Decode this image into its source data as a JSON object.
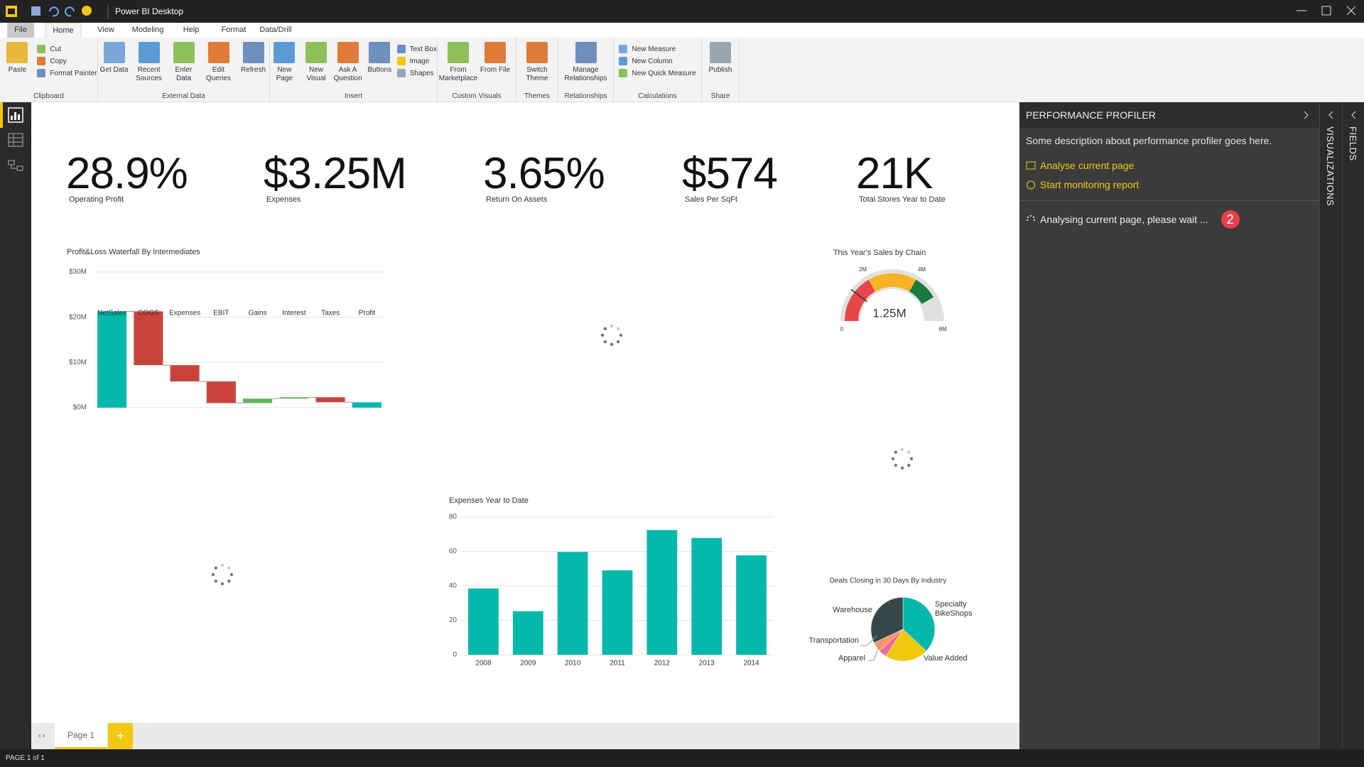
{
  "window": {
    "title": "Power BI Desktop"
  },
  "ribbon": {
    "tabs": [
      "File",
      "Home",
      "View",
      "Modeling",
      "Help",
      "Format",
      "Data/Drill"
    ],
    "active_tab": 1,
    "groups": [
      {
        "label": "Clipboard",
        "large": [
          "Paste"
        ],
        "small": [
          "Cut",
          "Copy",
          "Format Painter"
        ]
      },
      {
        "label": "External Data",
        "large": [
          "Get Data",
          "Recent Sources",
          "Enter Data",
          "Edit Queries",
          "Refresh"
        ],
        "small": []
      },
      {
        "label": "Insert",
        "large": [
          "New Page",
          "New Visual",
          "Ask A Question",
          "Buttons"
        ],
        "small": [
          "Text Box",
          "Image",
          "Shapes"
        ]
      },
      {
        "label": "Custom Visuals",
        "large": [
          "From Marketplace",
          "From File"
        ],
        "small": []
      },
      {
        "label": "Themes",
        "large": [
          "Switch Theme"
        ],
        "small": []
      },
      {
        "label": "Relationships",
        "large": [
          "Manage Relationships"
        ],
        "small": []
      },
      {
        "label": "Calculations",
        "large": [],
        "small": [
          "New Measure",
          "New Column",
          "New Quick Measure"
        ]
      },
      {
        "label": "Share",
        "large": [
          "Publish"
        ],
        "small": []
      }
    ]
  },
  "kpis": [
    {
      "value": "28.9%",
      "label": "Operating Profit"
    },
    {
      "value": "$3.25M",
      "label": "Expenses"
    },
    {
      "value": "3.65%",
      "label": "Return On Assets"
    },
    {
      "value": "$574",
      "label": "Sales Per SqFt"
    },
    {
      "value": "21K",
      "label": "Total Stores Year to Date"
    }
  ],
  "visuals": {
    "waterfall": {
      "type": "waterfall",
      "title": "Profit&Loss Waterfall By Intermediates",
      "categories": [
        "NetSales",
        "COGS",
        "Expenses",
        "EBIT",
        "Gains",
        "Interest",
        "Taxes",
        "Profit"
      ],
      "values": [
        21.3,
        -11.9,
        -3.6,
        -4.8,
        1.0,
        0.3,
        -1.1,
        1.2
      ],
      "is_total": [
        true,
        false,
        false,
        false,
        false,
        false,
        false,
        true
      ],
      "colors": {
        "increase": "#5fb45b",
        "decrease": "#c8443b",
        "total": "#01b8aa"
      },
      "ylim": [
        0,
        30
      ],
      "yticks": [
        {
          "value": 0,
          "label": "$0M"
        },
        {
          "value": 10,
          "label": "$10M"
        },
        {
          "value": 20,
          "label": "$20M"
        },
        {
          "value": 30,
          "label": "$30M"
        }
      ],
      "grid": true
    },
    "gauge": {
      "type": "gauge",
      "title": "This Year's Sales by Chain",
      "value": 1.25,
      "value_label": "1.25M",
      "range": [
        0,
        6
      ],
      "ticks": [
        {
          "value": 0,
          "label": "0"
        },
        {
          "value": 2,
          "label": "2M"
        },
        {
          "value": 4,
          "label": "4M"
        },
        {
          "value": 6,
          "label": "6M"
        }
      ],
      "bands": [
        {
          "from": 0,
          "to": 2,
          "color": "#e8464b"
        },
        {
          "from": 2,
          "to": 4,
          "color": "#f5b325"
        },
        {
          "from": 4,
          "to": 5,
          "color": "#1a7a3e"
        }
      ]
    },
    "bar": {
      "type": "bar",
      "title": "Expenses Year to Date",
      "categories": [
        "2008",
        "2009",
        "2010",
        "2011",
        "2012",
        "2013",
        "2014"
      ],
      "values": [
        38.5,
        25.3,
        59.7,
        49,
        72.4,
        67.8,
        57.7
      ],
      "color": "#01b8aa",
      "ylim": [
        0,
        80
      ],
      "yticks": [
        0,
        20,
        40,
        60,
        80
      ],
      "grid": true
    },
    "pie": {
      "type": "pie",
      "title": "Deals Closing in 30 Days By Industry",
      "categories": [
        "Specialty BikeShops",
        "Value Added",
        "Apparel",
        "Transportation",
        "Warehouse"
      ],
      "values": [
        37,
        22,
        4,
        5,
        32
      ],
      "colors": [
        "#01b8aa",
        "#f2c80f",
        "#e66c9c",
        "#fe9666",
        "#374649"
      ]
    }
  },
  "profiler": {
    "title": "PERFORMANCE PROFILER",
    "description": "Some description about performance profiler goes here.",
    "actions": [
      "Analyse current page",
      "Start monitoring report"
    ],
    "status": "Analysing current page, please wait ...",
    "badge": 2
  },
  "side_tabs": [
    "VISUALIZATIONS",
    "FIELDS"
  ],
  "pages": [
    "Page 1"
  ],
  "status_bar": "PAGE 1 of 1"
}
